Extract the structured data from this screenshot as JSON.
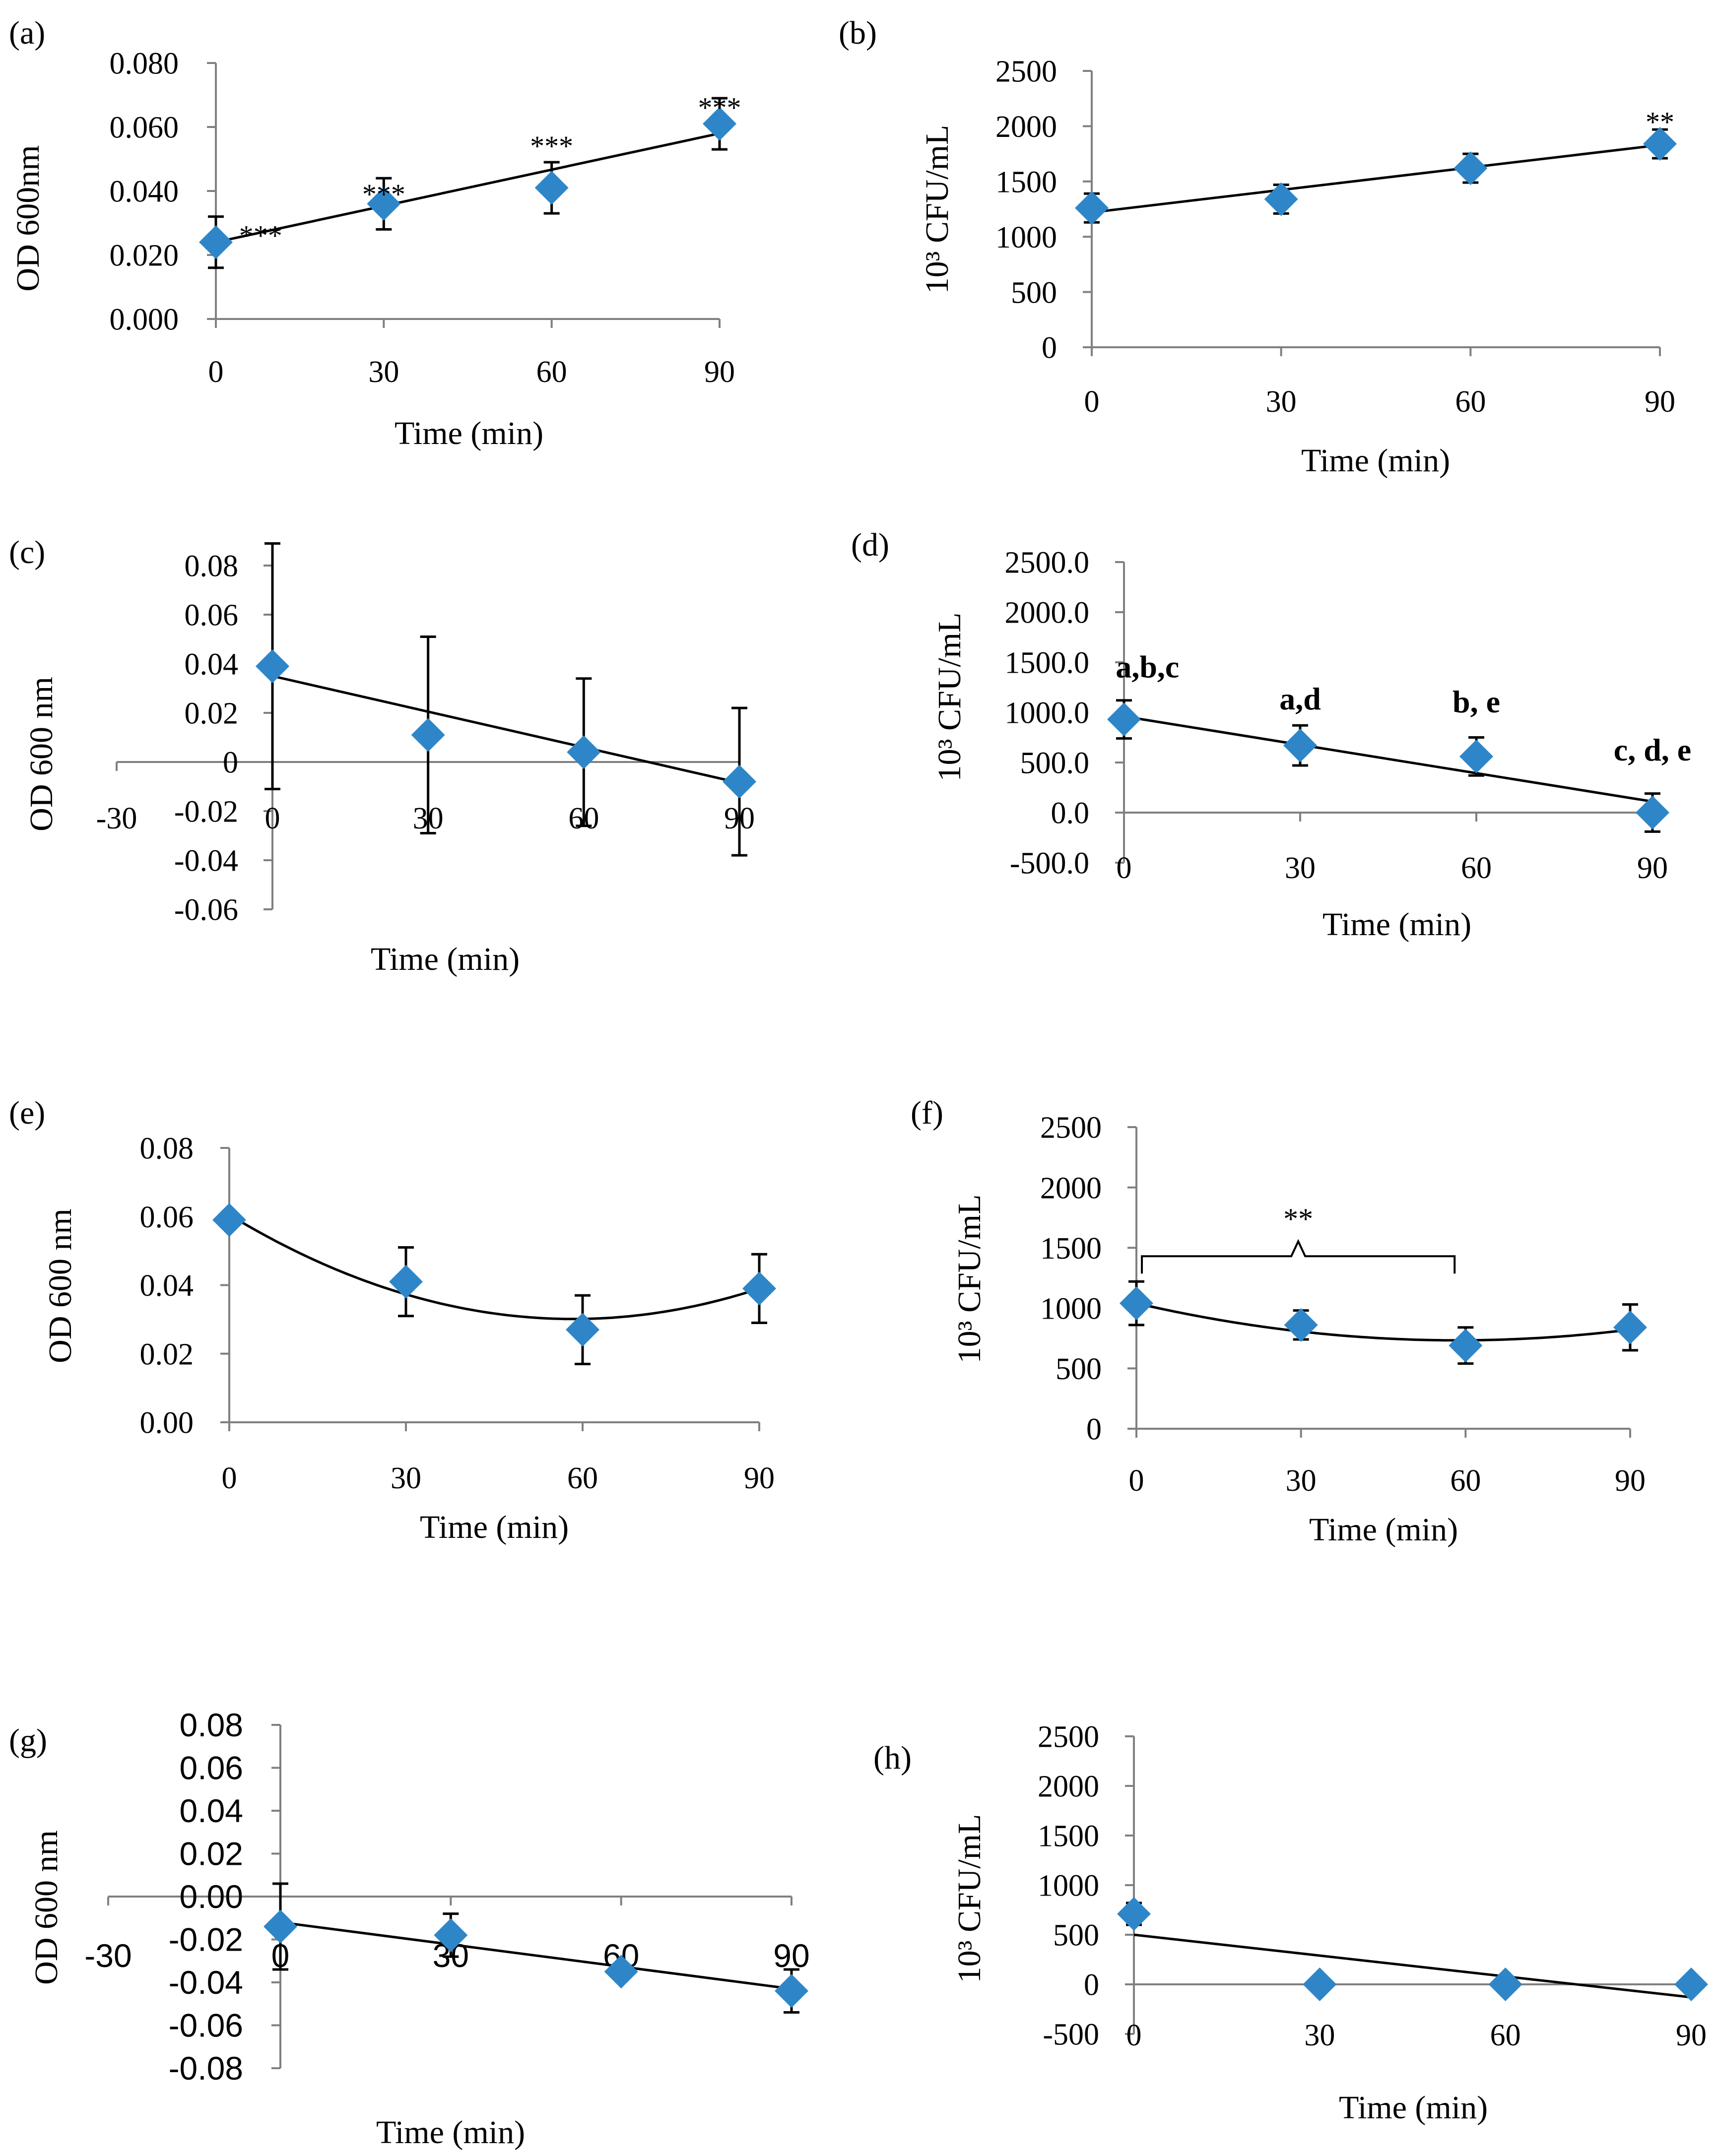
{
  "figure": {
    "accent_color": "#2E86C8",
    "axis_color": "#808080",
    "line_color": "#000000"
  },
  "chart_data": [
    {
      "id": "a",
      "panel_label": "(a)",
      "type": "scatter",
      "xlabel": "Time (min)",
      "ylabel": "OD 600nm",
      "x": [
        0,
        30,
        60,
        90
      ],
      "y": [
        0.024,
        0.036,
        0.041,
        0.061
      ],
      "yerr": [
        0.008,
        0.008,
        0.008,
        0.008
      ],
      "xlim": [
        0,
        90
      ],
      "ylim": [
        0,
        0.08
      ],
      "x_ticks": [
        0,
        30,
        60,
        90
      ],
      "x_tick_labels": [
        "0",
        "30",
        "60",
        "90"
      ],
      "y_ticks": [
        0,
        0.02,
        0.04,
        0.06,
        0.08
      ],
      "y_tick_labels": [
        "0.000",
        "0.020",
        "0.040",
        "0.060",
        "0.080"
      ],
      "trendline": {
        "type": "linear",
        "x": [
          0,
          90
        ],
        "y": [
          0.024,
          0.058
        ]
      },
      "annotations": [
        {
          "text": "***",
          "x": 8,
          "y": 0.023
        },
        {
          "text": "***",
          "x": 30,
          "y": 0.036
        },
        {
          "text": "***",
          "x": 60,
          "y": 0.051
        },
        {
          "text": "***",
          "x": 90,
          "y": 0.063
        }
      ]
    },
    {
      "id": "b",
      "panel_label": "(b)",
      "type": "scatter",
      "xlabel": "Time (min)",
      "ylabel": "10³ CFU/mL",
      "x": [
        0,
        30,
        60,
        90
      ],
      "y": [
        1260,
        1340,
        1620,
        1840
      ],
      "yerr": [
        130,
        130,
        130,
        130
      ],
      "xlim": [
        0,
        90
      ],
      "ylim": [
        0,
        2500
      ],
      "x_ticks": [
        0,
        30,
        60,
        90
      ],
      "x_tick_labels": [
        "0",
        "30",
        "60",
        "90"
      ],
      "y_ticks": [
        0,
        500,
        1000,
        1500,
        2000,
        2500
      ],
      "y_tick_labels": [
        "0",
        "500",
        "1000",
        "1500",
        "2000",
        "2500"
      ],
      "trendline": {
        "type": "linear",
        "x": [
          0,
          90
        ],
        "y": [
          1220,
          1830
        ]
      },
      "annotations": [
        {
          "text": "**",
          "x": 90,
          "y": 1950
        }
      ]
    },
    {
      "id": "c",
      "panel_label": "(c)",
      "type": "scatter",
      "xlabel": "Time (min)",
      "ylabel": "OD 600 nm",
      "x": [
        0,
        30,
        60,
        90
      ],
      "y": [
        0.039,
        0.011,
        0.004,
        -0.008
      ],
      "yerr": [
        0.05,
        0.04,
        0.03,
        0.03
      ],
      "xlim": [
        -30,
        90
      ],
      "ylim": [
        -0.06,
        0.08
      ],
      "x_ticks": [
        -30,
        0,
        30,
        60,
        90
      ],
      "x_tick_labels": [
        "-30",
        "0",
        "30",
        "60",
        "90"
      ],
      "y_ticks": [
        -0.06,
        -0.04,
        -0.02,
        0,
        0.02,
        0.04,
        0.06,
        0.08
      ],
      "y_tick_labels": [
        "-0.06",
        "-0.04",
        "-0.02",
        "0",
        "0.02",
        "0.04",
        "0.06",
        "0.08"
      ],
      "trendline": {
        "type": "linear",
        "x": [
          0,
          90
        ],
        "y": [
          0.035,
          -0.0085
        ]
      },
      "annotations": []
    },
    {
      "id": "d",
      "panel_label": "(d)",
      "type": "scatter",
      "xlabel": "Time (min)",
      "ylabel": "10³ CFU/mL",
      "x": [
        0,
        30,
        60,
        90
      ],
      "y": [
        930,
        670,
        560,
        0
      ],
      "yerr": [
        190,
        200,
        190,
        190
      ],
      "xlim": [
        0,
        90
      ],
      "ylim": [
        -500,
        2500
      ],
      "x_ticks": [
        0,
        30,
        60,
        90
      ],
      "x_tick_labels": [
        "0",
        "30",
        "60",
        "90"
      ],
      "y_ticks": [
        -500,
        0,
        500,
        1000,
        1500,
        2000,
        2500
      ],
      "y_tick_labels": [
        "-500.0",
        "0.0",
        "500.0",
        "1000.0",
        "1500.0",
        "2000.0",
        "2500.0"
      ],
      "trendline": {
        "type": "linear",
        "x": [
          0,
          90
        ],
        "y": [
          960,
          110
        ]
      },
      "annotations": [
        {
          "text": "a,b,c",
          "x": 4,
          "y": 1350
        },
        {
          "text": "a,d",
          "x": 30,
          "y": 1030
        },
        {
          "text": "b, e",
          "x": 60,
          "y": 1000
        },
        {
          "text": "c, d, e",
          "x": 90,
          "y": 520
        }
      ]
    },
    {
      "id": "e",
      "panel_label": "(e)",
      "type": "scatter",
      "xlabel": "Time (min)",
      "ylabel": "OD 600 nm",
      "x": [
        0,
        30,
        60,
        90
      ],
      "y": [
        0.059,
        0.041,
        0.027,
        0.039
      ],
      "yerr": [
        0,
        0.01,
        0.01,
        0.01
      ],
      "xlim": [
        0,
        90
      ],
      "ylim": [
        0,
        0.08
      ],
      "x_ticks": [
        0,
        30,
        60,
        90
      ],
      "x_tick_labels": [
        "0",
        "30",
        "60",
        "90"
      ],
      "y_ticks": [
        0,
        0.02,
        0.04,
        0.06,
        0.08
      ],
      "y_tick_labels": [
        "0.00",
        "0.02",
        "0.04",
        "0.06",
        "0.08"
      ],
      "trendline": {
        "type": "quadratic",
        "coefficients": [
          0.0605,
          -0.00104,
          8.9e-06
        ]
      },
      "annotations": []
    },
    {
      "id": "f",
      "panel_label": "(f)",
      "type": "scatter",
      "xlabel": "Time (min)",
      "ylabel": "10³ CFU/mL",
      "x": [
        0,
        30,
        60,
        90
      ],
      "y": [
        1040,
        860,
        690,
        840
      ],
      "yerr": [
        180,
        120,
        150,
        190
      ],
      "xlim": [
        0,
        90
      ],
      "ylim": [
        0,
        2500
      ],
      "x_ticks": [
        0,
        30,
        60,
        90
      ],
      "x_tick_labels": [
        "0",
        "30",
        "60",
        "90"
      ],
      "y_ticks": [
        0,
        500,
        1000,
        1500,
        2000,
        2500
      ],
      "y_tick_labels": [
        "0",
        "500",
        "1000",
        "1500",
        "2000",
        "2500"
      ],
      "trendline": {
        "type": "quadratic",
        "coefficients": [
          1040,
          -10.5,
          0.0897
        ]
      },
      "bracket": {
        "x_start": 1,
        "x_end": 58,
        "y": 1430,
        "label": "**"
      },
      "annotations": []
    },
    {
      "id": "g",
      "panel_label": "(g)",
      "type": "scatter",
      "xlabel": "Time (min)",
      "ylabel": "OD 600 nm",
      "x": [
        0,
        30,
        60,
        90
      ],
      "y": [
        -0.014,
        -0.018,
        -0.035,
        -0.044
      ],
      "yerr": [
        0.02,
        0.01,
        0,
        0.01
      ],
      "xlim": [
        -30,
        90
      ],
      "ylim": [
        -0.08,
        0.08
      ],
      "x_ticks": [
        -30,
        0,
        30,
        60,
        90
      ],
      "x_tick_labels": [
        "-30",
        "0",
        "30",
        "60",
        "90"
      ],
      "y_ticks": [
        -0.08,
        -0.06,
        -0.04,
        -0.02,
        0,
        0.02,
        0.04,
        0.06,
        0.08
      ],
      "y_tick_labels": [
        "-0.08",
        "-0.06",
        "-0.04",
        "-0.02",
        "0.00",
        "0.02",
        "0.04",
        "0.06",
        "0.08"
      ],
      "trendline": {
        "type": "linear",
        "x": [
          0,
          90
        ],
        "y": [
          -0.012,
          -0.043
        ]
      },
      "annotations": []
    },
    {
      "id": "h",
      "panel_label": "(h)",
      "type": "scatter",
      "xlabel": "Time (min)",
      "ylabel": "10³ CFU/mL",
      "x": [
        0,
        30,
        60,
        90
      ],
      "y": [
        710,
        0,
        0,
        0
      ],
      "yerr": [
        110,
        0,
        0,
        0
      ],
      "xlim": [
        0,
        90
      ],
      "ylim": [
        -500,
        2500
      ],
      "x_ticks": [
        0,
        30,
        60,
        90
      ],
      "x_tick_labels": [
        "0",
        "30",
        "60",
        "90"
      ],
      "y_ticks": [
        -500,
        0,
        500,
        1000,
        1500,
        2000,
        2500
      ],
      "y_tick_labels": [
        "-500",
        "0",
        "500",
        "1000",
        "1500",
        "2000",
        "2500"
      ],
      "trendline": {
        "type": "linear",
        "x": [
          0,
          90
        ],
        "y": [
          500,
          -130
        ]
      },
      "annotations": []
    }
  ]
}
